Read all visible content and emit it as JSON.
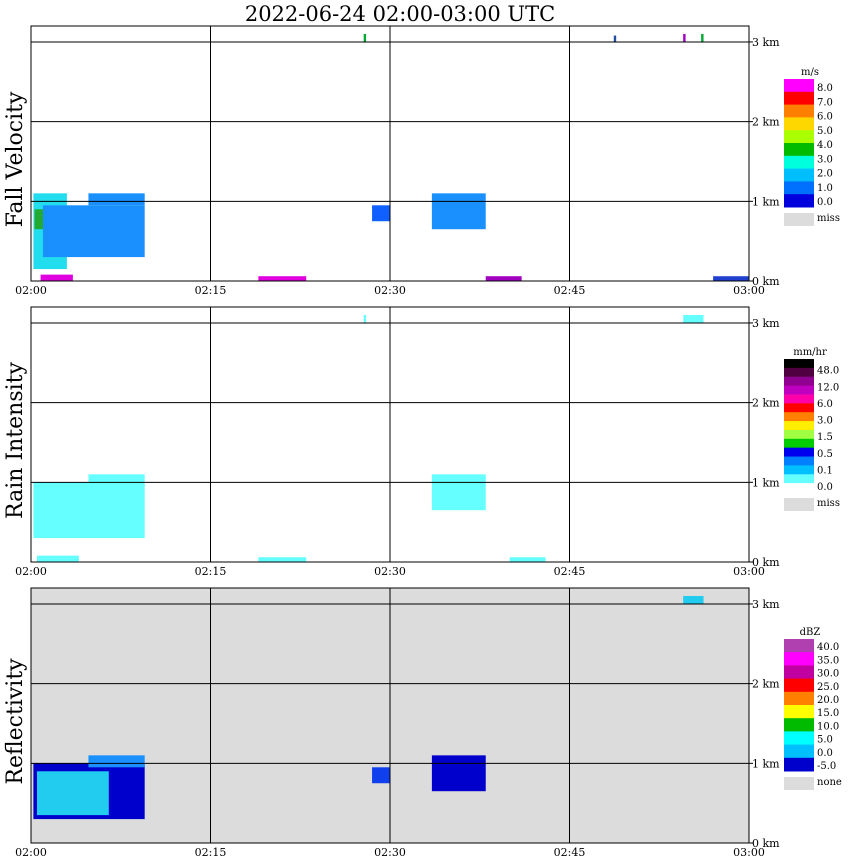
{
  "title": "2022-06-24   02:00-03:00 UTC",
  "colors": {
    "plot_bg_reflectivity": "#dcdcdc",
    "grid": "#000000",
    "miss": "#dcdcdc"
  },
  "chart_data": [
    {
      "type": "heatmap",
      "name": "fall-velocity",
      "ylabel": "Fall Velocity",
      "x_ticks": [
        "02:00",
        "02:15",
        "02:30",
        "02:45",
        "03:00"
      ],
      "y_ticks": [
        "0 km",
        "1 km",
        "2 km",
        "3 km"
      ],
      "xlim_minutes": [
        0,
        60
      ],
      "ylim_km": [
        0,
        3.2
      ],
      "colorbar": {
        "unit": "m/s",
        "colors": [
          "#ff00ff",
          "#ff0000",
          "#ff8000",
          "#ffd700",
          "#aaff00",
          "#00bb00",
          "#00ffdd",
          "#00bfff",
          "#0070ff",
          "#0000dd"
        ],
        "labels": [
          "8.0",
          "7.0",
          "6.0",
          "5.0",
          "4.0",
          "3.0",
          "2.0",
          "1.0",
          "0.0"
        ],
        "miss_label": "miss"
      },
      "echoes": [
        {
          "t": [
            0.2,
            3.0
          ],
          "h": [
            0.15,
            1.1
          ],
          "color": "#22ddee"
        },
        {
          "t": [
            0.3,
            1.5
          ],
          "h": [
            0.65,
            0.9
          ],
          "color": "#22aa33"
        },
        {
          "t": [
            1.0,
            9.5
          ],
          "h": [
            0.3,
            0.95
          ],
          "color": "#1a90ff"
        },
        {
          "t": [
            4.8,
            9.5
          ],
          "h": [
            0.95,
            1.1
          ],
          "color": "#1a90ff"
        },
        {
          "t": [
            0.8,
            3.5
          ],
          "h": [
            0.0,
            0.08
          ],
          "color": "#e000e0"
        },
        {
          "t": [
            19.0,
            23.0
          ],
          "h": [
            0.0,
            0.06
          ],
          "color": "#e000e0"
        },
        {
          "t": [
            28.5,
            30.0
          ],
          "h": [
            0.75,
            0.95
          ],
          "color": "#1060ff"
        },
        {
          "t": [
            33.5,
            38.0
          ],
          "h": [
            0.65,
            1.1
          ],
          "color": "#1a90ff"
        },
        {
          "t": [
            38.0,
            41.0
          ],
          "h": [
            0.0,
            0.06
          ],
          "color": "#a000c0"
        },
        {
          "t": [
            57.0,
            60.0
          ],
          "h": [
            0.0,
            0.06
          ],
          "color": "#2040d0"
        },
        {
          "t": [
            27.8,
            28.0
          ],
          "h": [
            3.0,
            3.1
          ],
          "color": "#00aa33"
        },
        {
          "t": [
            48.7,
            48.9
          ],
          "h": [
            3.0,
            3.08
          ],
          "color": "#2050a0"
        },
        {
          "t": [
            54.5,
            54.7
          ],
          "h": [
            3.0,
            3.1
          ],
          "color": "#a000c0"
        },
        {
          "t": [
            56.0,
            56.2
          ],
          "h": [
            3.0,
            3.1
          ],
          "color": "#00aa33"
        }
      ]
    },
    {
      "type": "heatmap",
      "name": "rain-intensity",
      "ylabel": "Rain Intensity",
      "x_ticks": [
        "02:00",
        "02:15",
        "02:30",
        "02:45",
        "03:00"
      ],
      "y_ticks": [
        "0 km",
        "1 km",
        "2 km",
        "3 km"
      ],
      "xlim_minutes": [
        0,
        60
      ],
      "ylim_km": [
        0,
        3.2
      ],
      "colorbar": {
        "unit": "mm/hr",
        "colors": [
          "#000000",
          "#500040",
          "#900090",
          "#c000c0",
          "#ff00aa",
          "#ff0000",
          "#ff8000",
          "#ffee00",
          "#a0ff40",
          "#00cc00",
          "#0000ee",
          "#0080ff",
          "#00bfff",
          "#66ffff",
          "#ffffff"
        ],
        "labels": [
          "48.0",
          "12.0",
          "6.0",
          "3.0",
          "1.5",
          "0.5",
          "0.1",
          "0.0"
        ],
        "miss_label": "miss"
      },
      "echoes": [
        {
          "t": [
            0.2,
            9.5
          ],
          "h": [
            0.3,
            1.0
          ],
          "color": "#66ffff"
        },
        {
          "t": [
            4.8,
            9.5
          ],
          "h": [
            0.95,
            1.1
          ],
          "color": "#66ffff"
        },
        {
          "t": [
            0.5,
            4.0
          ],
          "h": [
            0.0,
            0.08
          ],
          "color": "#66ffff"
        },
        {
          "t": [
            19.0,
            23.0
          ],
          "h": [
            0.0,
            0.06
          ],
          "color": "#66ffff"
        },
        {
          "t": [
            33.5,
            38.0
          ],
          "h": [
            0.65,
            1.1
          ],
          "color": "#66ffff"
        },
        {
          "t": [
            40.0,
            43.0
          ],
          "h": [
            0.0,
            0.06
          ],
          "color": "#66ffff"
        },
        {
          "t": [
            27.8,
            28.0
          ],
          "h": [
            3.0,
            3.1
          ],
          "color": "#66ffff"
        },
        {
          "t": [
            54.5,
            56.2
          ],
          "h": [
            3.0,
            3.1
          ],
          "color": "#66ffff"
        }
      ]
    },
    {
      "type": "heatmap",
      "name": "reflectivity",
      "ylabel": "Reflectivity",
      "x_ticks": [
        "02:00",
        "02:15",
        "02:30",
        "02:45",
        "03:00"
      ],
      "y_ticks": [
        "0 km",
        "1 km",
        "2 km",
        "3 km"
      ],
      "xlim_minutes": [
        0,
        60
      ],
      "ylim_km": [
        0,
        3.2
      ],
      "colorbar": {
        "unit": "dBZ",
        "colors": [
          "#b040b0",
          "#ff00ff",
          "#c000a0",
          "#ff0000",
          "#ff7f00",
          "#ffff00",
          "#00bb00",
          "#00ffff",
          "#00bfff",
          "#0000cc"
        ],
        "labels": [
          "40.0",
          "35.0",
          "30.0",
          "25.0",
          "20.0",
          "15.0",
          "10.0",
          "5.0",
          "0.0",
          "-5.0"
        ],
        "miss_label": "none"
      },
      "echoes": [
        {
          "t": [
            0.2,
            9.5
          ],
          "h": [
            0.3,
            1.0
          ],
          "color": "#0000cc"
        },
        {
          "t": [
            0.5,
            6.5
          ],
          "h": [
            0.35,
            0.9
          ],
          "color": "#22ccee"
        },
        {
          "t": [
            4.8,
            9.5
          ],
          "h": [
            0.95,
            1.1
          ],
          "color": "#1a90ff"
        },
        {
          "t": [
            28.5,
            30.0
          ],
          "h": [
            0.75,
            0.95
          ],
          "color": "#1040ee"
        },
        {
          "t": [
            33.5,
            38.0
          ],
          "h": [
            0.65,
            1.1
          ],
          "color": "#0000cc"
        },
        {
          "t": [
            54.5,
            56.2
          ],
          "h": [
            3.0,
            3.1
          ],
          "color": "#22ccee"
        }
      ]
    }
  ]
}
